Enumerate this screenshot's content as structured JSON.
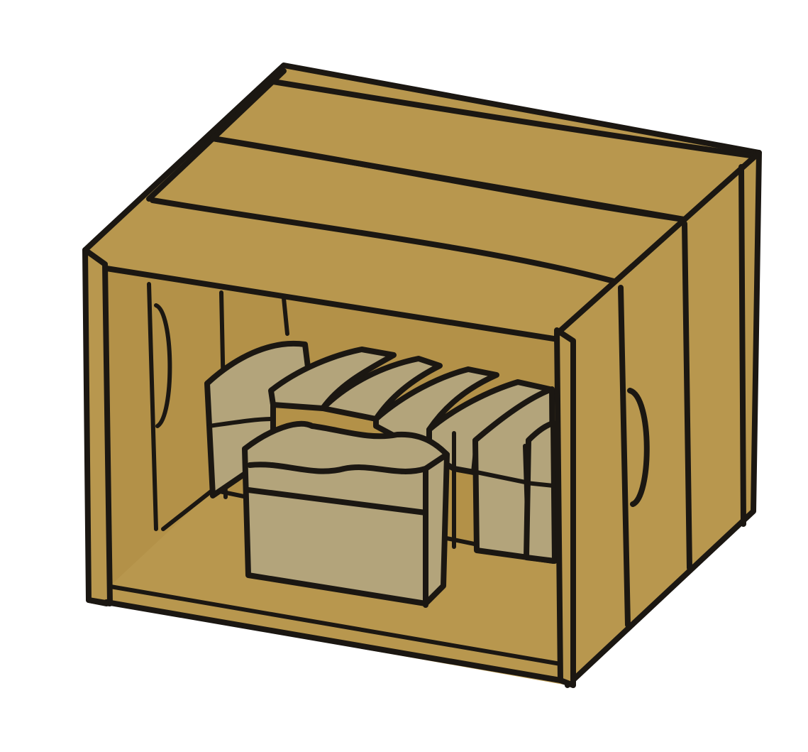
{
  "illustration": {
    "subject": "wooden-crate-with-packages",
    "colors": {
      "wood": "#b8974e",
      "wood_shadow": "#a9883f",
      "package": "#b3a47b",
      "package_dark": "#a3946b",
      "ink": "#1b1712",
      "background": "#ffffff"
    },
    "package_count": 7,
    "hand_hole_count": 2
  }
}
